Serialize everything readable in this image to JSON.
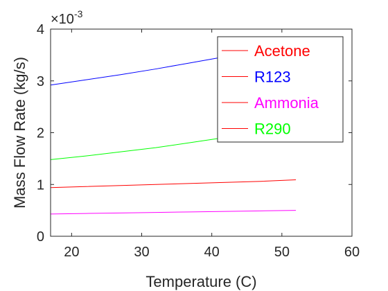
{
  "chart_data": {
    "type": "line",
    "xlabel": "Temperature (C)",
    "ylabel": "Mass Flow Rate (kg/s)",
    "xlim": [
      17,
      60
    ],
    "ylim": [
      0,
      0.004
    ],
    "xticks": [
      20,
      30,
      40,
      50,
      60
    ],
    "xtick_labels": [
      "20",
      "30",
      "40",
      "50",
      "60"
    ],
    "yticks": [
      0,
      0.001,
      0.002,
      0.003,
      0.004
    ],
    "ytick_labels": [
      "0",
      "1",
      "2",
      "3",
      "4"
    ],
    "y_exponent": {
      "base": "×10",
      "power": "-3"
    },
    "grid": false,
    "legend_position": "top-right",
    "series": [
      {
        "name": "Acetone",
        "color": "#ff0000",
        "x": [
          17,
          22,
          27,
          32,
          37,
          42,
          47,
          52
        ],
        "y": [
          0.00094,
          0.00096,
          0.00098,
          0.001,
          0.00102,
          0.00104,
          0.00106,
          0.00109
        ]
      },
      {
        "name": "R123",
        "color": "#0000ff",
        "x": [
          17,
          22,
          27,
          32,
          37,
          42,
          47,
          52
        ],
        "y": [
          0.00292,
          0.00302,
          0.00312,
          0.00323,
          0.00335,
          0.00347,
          0.00361,
          0.00375
        ]
      },
      {
        "name": "Ammonia",
        "color": "#ff00ff",
        "x": [
          17,
          22,
          27,
          32,
          37,
          42,
          47,
          52
        ],
        "y": [
          0.00043,
          0.00044,
          0.00045,
          0.00046,
          0.00047,
          0.00048,
          0.00049,
          0.0005
        ]
      },
      {
        "name": "R290",
        "color": "#00ff00",
        "x": [
          17,
          22,
          27,
          32,
          37,
          42,
          47,
          52
        ],
        "y": [
          0.00148,
          0.00155,
          0.00163,
          0.00171,
          0.00181,
          0.00191,
          0.00203,
          0.00216
        ]
      },
      {
        "name": "",
        "color": "#00ff00",
        "x": [
          17,
          52
        ],
        "y": [
          0.0,
          0.0
        ]
      }
    ]
  }
}
